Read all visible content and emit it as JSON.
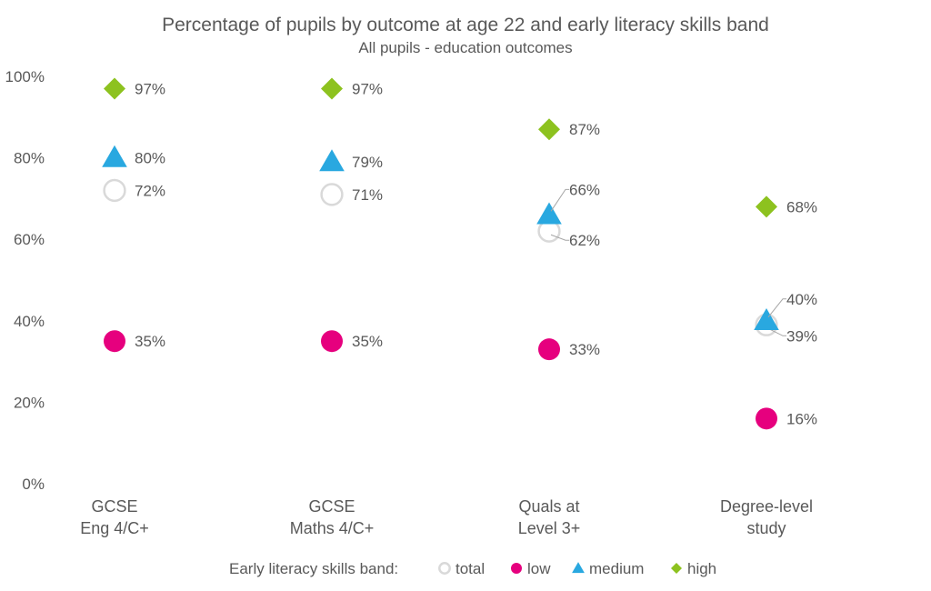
{
  "chart_data": {
    "type": "scatter",
    "title": "Percentage of pupils by outcome at age 22 and early literacy skills band",
    "subtitle": "All pupils - education outcomes",
    "xlabel": "",
    "ylabel": "",
    "ylim": [
      0,
      100
    ],
    "yticks": [
      "0%",
      "20%",
      "40%",
      "60%",
      "80%",
      "100%"
    ],
    "grid": false,
    "categories": [
      [
        "GCSE",
        "Eng 4/C+"
      ],
      [
        "GCSE",
        "Maths 4/C+"
      ],
      [
        "Quals at",
        "Level 3+"
      ],
      [
        "Degree-level",
        "study"
      ]
    ],
    "legend": {
      "title": "Early literacy skills band:",
      "placement": "bottom"
    },
    "series": [
      {
        "name": "total",
        "marker": "circle-open",
        "color": "#d9d9d9",
        "values": [
          72,
          71,
          62,
          39
        ],
        "labels": [
          "72%",
          "71%",
          "62%",
          "39%"
        ]
      },
      {
        "name": "low",
        "marker": "circle",
        "color": "#e6007e",
        "values": [
          35,
          35,
          33,
          16
        ],
        "labels": [
          "35%",
          "35%",
          "33%",
          "16%"
        ]
      },
      {
        "name": "medium",
        "marker": "triangle",
        "color": "#29a8e0",
        "values": [
          80,
          79,
          66,
          40
        ],
        "labels": [
          "80%",
          "79%",
          "66%",
          "40%"
        ]
      },
      {
        "name": "high",
        "marker": "diamond",
        "color": "#8dc21f",
        "values": [
          97,
          97,
          87,
          68
        ],
        "labels": [
          "97%",
          "97%",
          "87%",
          "68%"
        ]
      }
    ]
  }
}
